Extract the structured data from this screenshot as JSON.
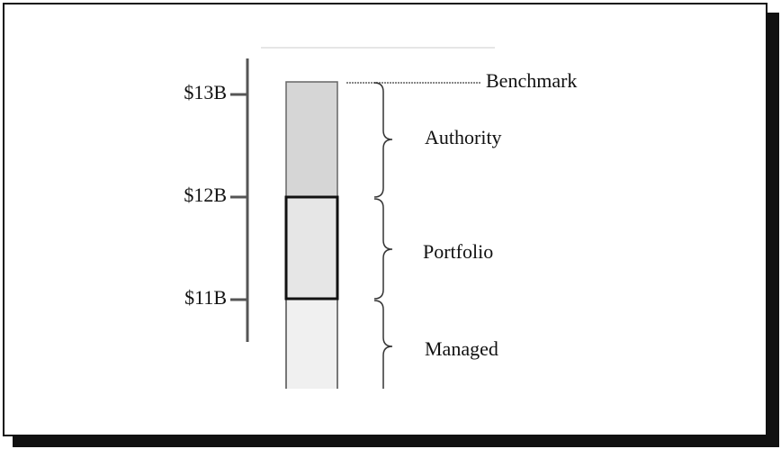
{
  "axis": {
    "labels": [
      "$13B",
      "$12B",
      "$11B"
    ]
  },
  "levels": {
    "benchmark": "Benchmark"
  },
  "segments": [
    "Authority",
    "Portfolio",
    "Managed"
  ]
}
